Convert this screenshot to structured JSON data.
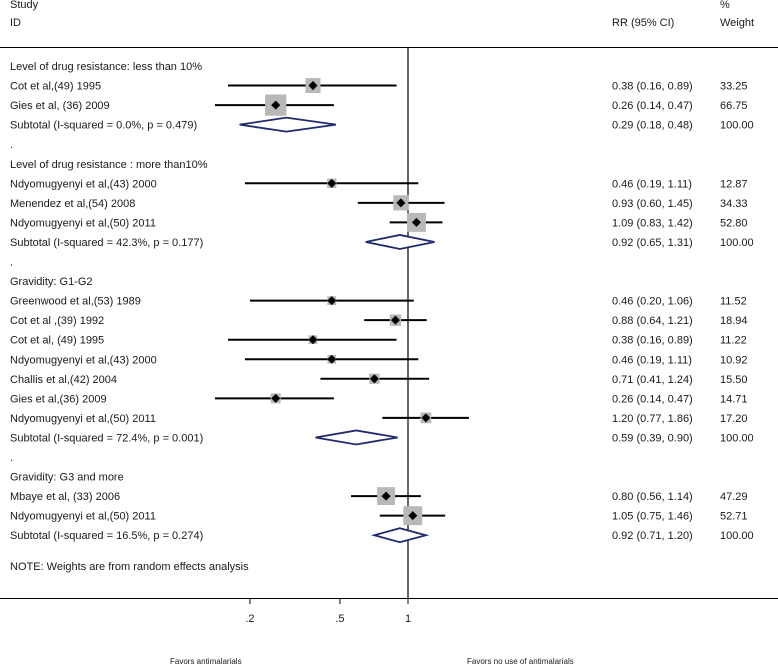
{
  "headers": {
    "study": "Study",
    "id": "ID",
    "rr": "RR (95% CI)",
    "pct": "%",
    "weight": "Weight"
  },
  "note": "NOTE: Weights are from random effects analysis",
  "favors_left": "Favors antimalarials",
  "favors_right": "Favors no use of antimalarials",
  "colors": {
    "diamond": "#1f2b6e",
    "box": "#b8b8b8",
    "line": "#000000"
  },
  "chart_data": {
    "type": "forest",
    "x_scale": "log",
    "null_value": 1,
    "x_ticks": [
      {
        "value": 0.2,
        "label": ".2"
      },
      {
        "value": 0.5,
        "label": ".5"
      },
      {
        "value": 1,
        "label": "1"
      }
    ],
    "rows": [
      {
        "kind": "group",
        "label": "Level of drug resistance:  less than 10%"
      },
      {
        "kind": "study",
        "label": "Cot et al,(49) 1995",
        "rr": 0.38,
        "lo": 0.16,
        "hi": 0.89,
        "rr_text": "0.38 (0.16, 0.89)",
        "weight": 33.25,
        "weight_text": "33.25"
      },
      {
        "kind": "study",
        "label": "Gies et al, (36) 2009",
        "rr": 0.26,
        "lo": 0.14,
        "hi": 0.47,
        "rr_text": "0.26 (0.14, 0.47)",
        "weight": 66.75,
        "weight_text": "66.75"
      },
      {
        "kind": "subtotal",
        "label": "Subtotal  (I-squared = 0.0%, p = 0.479)",
        "rr": 0.29,
        "lo": 0.18,
        "hi": 0.48,
        "rr_text": "0.29 (0.18, 0.48)",
        "weight_text": "100.00"
      },
      {
        "kind": "dot",
        "label": "."
      },
      {
        "kind": "group",
        "label": "Level of drug resistance : more than10%"
      },
      {
        "kind": "study",
        "label": "Ndyomugyenyi et al,(43) 2000",
        "rr": 0.46,
        "lo": 0.19,
        "hi": 1.11,
        "rr_text": "0.46 (0.19, 1.11)",
        "weight": 12.87,
        "weight_text": "12.87"
      },
      {
        "kind": "study",
        "label": "Menendez et al,(54) 2008",
        "rr": 0.93,
        "lo": 0.6,
        "hi": 1.45,
        "rr_text": "0.93 (0.60, 1.45)",
        "weight": 34.33,
        "weight_text": "34.33"
      },
      {
        "kind": "study",
        "label": "Ndyomugyenyi  et al,(50)  2011",
        "rr": 1.09,
        "lo": 0.83,
        "hi": 1.42,
        "rr_text": "1.09 (0.83, 1.42)",
        "weight": 52.8,
        "weight_text": "52.80"
      },
      {
        "kind": "subtotal",
        "label": "Subtotal  (I-squared = 42.3%, p = 0.177)",
        "rr": 0.92,
        "lo": 0.65,
        "hi": 1.31,
        "rr_text": "0.92 (0.65, 1.31)",
        "weight_text": "100.00"
      },
      {
        "kind": "dot",
        "label": "."
      },
      {
        "kind": "group",
        "label": "Gravidity:  G1-G2"
      },
      {
        "kind": "study",
        "label": "Greenwood et al,(53)  1989",
        "rr": 0.46,
        "lo": 0.2,
        "hi": 1.06,
        "rr_text": "0.46 (0.20, 1.06)",
        "weight": 11.52,
        "weight_text": "11.52"
      },
      {
        "kind": "study",
        "label": "Cot et al ,(39) 1992",
        "rr": 0.88,
        "lo": 0.64,
        "hi": 1.21,
        "rr_text": "0.88 (0.64, 1.21)",
        "weight": 18.94,
        "weight_text": "18.94"
      },
      {
        "kind": "study",
        "label": "Cot et al, (49) 1995",
        "rr": 0.38,
        "lo": 0.16,
        "hi": 0.89,
        "rr_text": "0.38 (0.16, 0.89)",
        "weight": 11.22,
        "weight_text": "11.22"
      },
      {
        "kind": "study",
        "label": "Ndyomugyenyi et al,(43) 2000",
        "rr": 0.46,
        "lo": 0.19,
        "hi": 1.11,
        "rr_text": "0.46 (0.19, 1.11)",
        "weight": 10.92,
        "weight_text": "10.92"
      },
      {
        "kind": "study",
        "label": "Challis et al,(42) 2004",
        "rr": 0.71,
        "lo": 0.41,
        "hi": 1.24,
        "rr_text": "0.71 (0.41, 1.24)",
        "weight": 15.5,
        "weight_text": "15.50"
      },
      {
        "kind": "study",
        "label": "Gies et al,(36)  2009",
        "rr": 0.26,
        "lo": 0.14,
        "hi": 0.47,
        "rr_text": "0.26 (0.14, 0.47)",
        "weight": 14.71,
        "weight_text": "14.71"
      },
      {
        "kind": "study",
        "label": "Ndyomugyenyi et al,(50)  2011",
        "rr": 1.2,
        "lo": 0.77,
        "hi": 1.86,
        "rr_text": "1.20 (0.77, 1.86)",
        "weight": 17.2,
        "weight_text": "17.20"
      },
      {
        "kind": "subtotal",
        "label": "Subtotal  (I-squared = 72.4%, p = 0.001)",
        "rr": 0.59,
        "lo": 0.39,
        "hi": 0.9,
        "rr_text": "0.59 (0.39, 0.90)",
        "weight_text": "100.00"
      },
      {
        "kind": "dot",
        "label": "."
      },
      {
        "kind": "group",
        "label": "Gravidity:  G3 and more"
      },
      {
        "kind": "study",
        "label": "Mbaye et al, (33)  2006",
        "rr": 0.8,
        "lo": 0.56,
        "hi": 1.14,
        "rr_text": "0.80 (0.56, 1.14)",
        "weight": 47.29,
        "weight_text": "47.29"
      },
      {
        "kind": "study",
        "label": "Ndyomugyenyi et al,(50)  2011",
        "rr": 1.05,
        "lo": 0.75,
        "hi": 1.46,
        "rr_text": "1.05 (0.75, 1.46)",
        "weight": 52.71,
        "weight_text": "52.71"
      },
      {
        "kind": "subtotal",
        "label": "Subtotal  (I-squared = 16.5%, p = 0.274)",
        "rr": 0.92,
        "lo": 0.71,
        "hi": 1.2,
        "rr_text": "0.92 (0.71, 1.20)",
        "weight_text": "100.00"
      }
    ]
  }
}
